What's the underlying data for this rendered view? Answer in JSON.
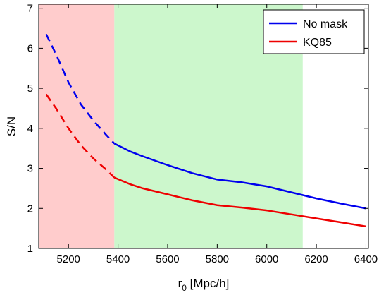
{
  "chart_data": {
    "type": "line",
    "xlabel_main": "r",
    "xlabel_sub": "0",
    "xlabel_rest": " [Mpc/h]",
    "ylabel": "S/N",
    "xlim": [
      5080,
      6410
    ],
    "ylim": [
      1,
      7.1
    ],
    "xticks": [
      5200,
      5400,
      5600,
      5800,
      6000,
      6200,
      6400
    ],
    "yticks": [
      1,
      2,
      3,
      4,
      5,
      6,
      7
    ],
    "grid": false,
    "legend_position": "top-right",
    "regions": [
      {
        "x0": 5080,
        "x1": 5385,
        "color": "#ffcccc"
      },
      {
        "x0": 5385,
        "x1": 6145,
        "color": "#ccf7cc"
      }
    ],
    "dash_until": 5385,
    "series": [
      {
        "name": "No mask",
        "color": "#0000ee",
        "x": [
          5110,
          5150,
          5200,
          5250,
          5300,
          5350,
          5385,
          5450,
          5500,
          5600,
          5700,
          5800,
          5900,
          6000,
          6100,
          6200,
          6300,
          6400
        ],
        "y": [
          6.35,
          5.85,
          5.15,
          4.6,
          4.2,
          3.85,
          3.62,
          3.42,
          3.3,
          3.08,
          2.88,
          2.72,
          2.65,
          2.55,
          2.4,
          2.25,
          2.12,
          2.0
        ]
      },
      {
        "name": "KQ85",
        "color": "#ee0000",
        "x": [
          5110,
          5150,
          5200,
          5250,
          5300,
          5350,
          5385,
          5450,
          5500,
          5600,
          5700,
          5800,
          5900,
          6000,
          6100,
          6200,
          6300,
          6400
        ],
        "y": [
          4.85,
          4.5,
          4.0,
          3.58,
          3.25,
          2.98,
          2.77,
          2.6,
          2.5,
          2.35,
          2.2,
          2.08,
          2.02,
          1.95,
          1.85,
          1.75,
          1.65,
          1.55
        ]
      }
    ]
  }
}
